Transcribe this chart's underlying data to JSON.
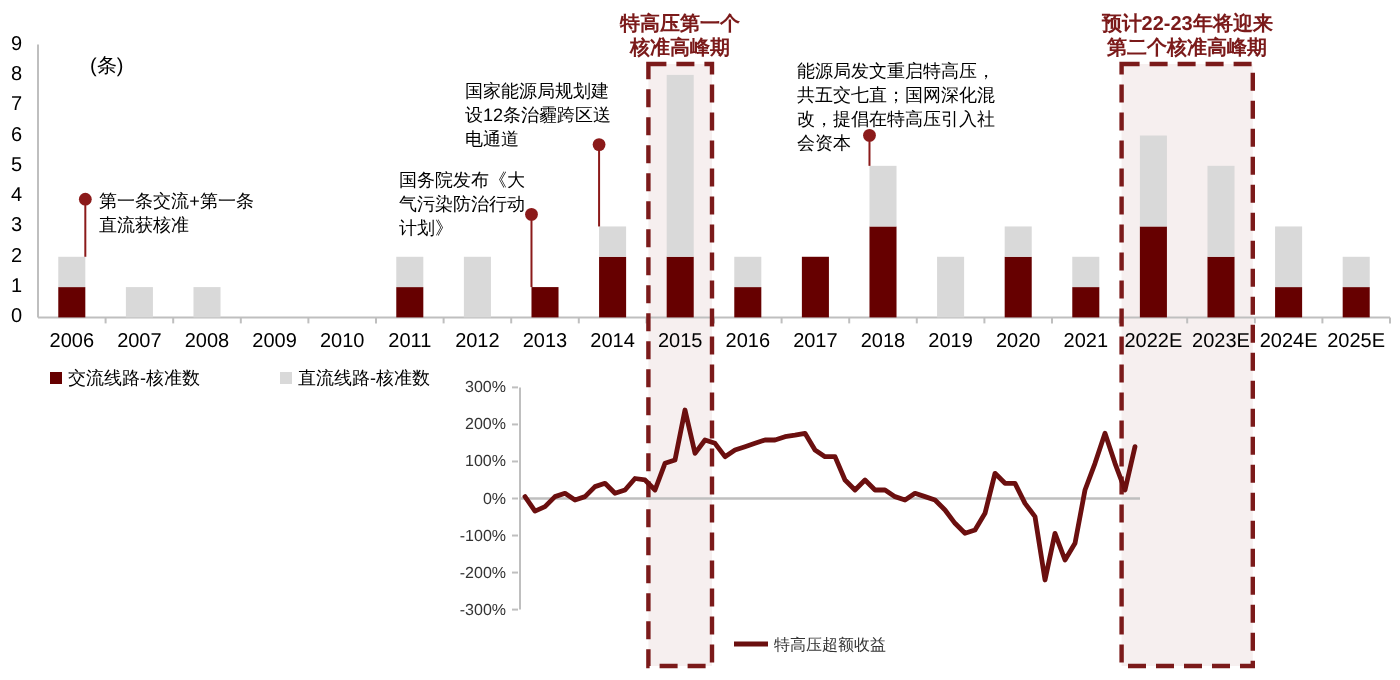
{
  "chart_data": [
    {
      "type": "bar",
      "stacked": true,
      "ylabel": "(条)",
      "categories": [
        "2006",
        "2007",
        "2008",
        "2009",
        "2010",
        "2011",
        "2012",
        "2013",
        "2014",
        "2015",
        "2016",
        "2017",
        "2018",
        "2019",
        "2020",
        "2021",
        "2022E",
        "2023E",
        "2024E",
        "2025E"
      ],
      "series": [
        {
          "name": "交流线路-核准数",
          "color": "#660000",
          "values": [
            1,
            0,
            0,
            0,
            0,
            1,
            0,
            1,
            2,
            2,
            1,
            2,
            3,
            0,
            2,
            1,
            3,
            2,
            1,
            1
          ]
        },
        {
          "name": "直流线路-核准数",
          "color": "#d9d9d9",
          "values": [
            1,
            1,
            1,
            0,
            0,
            1,
            2,
            0,
            1,
            6,
            1,
            0,
            2,
            2,
            1,
            1,
            3,
            3,
            2,
            1
          ]
        }
      ],
      "ylim": [
        0,
        9
      ],
      "yticks": [
        0,
        1,
        2,
        3,
        4,
        5,
        6,
        7,
        8,
        9
      ],
      "legend": "bottom left",
      "bands": [
        {
          "axis": "x",
          "from": "2015",
          "to": "2015",
          "label": "特高压第一个核准高峰期",
          "color": "#7b1a1a"
        },
        {
          "axis": "x",
          "from": "2022E",
          "to": "2023E",
          "label": "预计22-23年将迎来第二个核准高峰期",
          "color": "#7b1a1a"
        }
      ],
      "annotations": [
        "第一条交流+第一条直流获核准",
        "国务院发布《大气污染防治行动计划》",
        "国家能源局规划建设12条治霾跨区送电通道",
        "能源局发文重启特高压，共五交七直；国网深化混改，提倡在特高压引入社会资本"
      ]
    },
    {
      "type": "line",
      "ylim": [
        -300,
        300
      ],
      "yticks": [
        {
          "value": 300,
          "label": "300%"
        },
        {
          "value": 200,
          "label": "200%"
        },
        {
          "value": 100,
          "label": "100%"
        },
        {
          "value": 0,
          "label": "0%"
        },
        {
          "value": -100,
          "label": "-100%"
        },
        {
          "value": -200,
          "label": "-200%"
        },
        {
          "value": -300,
          "label": "-300%"
        }
      ],
      "tick_labels": "y",
      "legend": "bottom",
      "ref_lines": [
        {
          "axis": "y",
          "value": 0,
          "color": "#bfbfbf"
        }
      ],
      "categories": [
        null,
        null,
        null,
        null,
        null,
        null,
        null,
        null,
        null,
        null,
        null,
        null,
        null,
        null,
        null,
        null,
        null,
        null,
        null,
        null,
        null,
        null,
        null,
        null,
        null,
        null,
        null,
        null,
        null,
        null,
        null,
        null,
        null,
        null,
        null,
        null,
        null,
        null,
        null,
        null,
        null,
        null,
        null,
        null,
        null,
        null,
        null,
        null,
        null,
        null,
        null,
        null,
        null,
        null,
        null,
        null,
        null,
        null,
        null,
        null,
        null,
        null
      ],
      "series": [
        {
          "name": "特高压超额收益",
          "color": "#6b0f0f",
          "values": [
            5,
            -34,
            -22,
            5,
            14,
            -4,
            5,
            32,
            41,
            14,
            23,
            54,
            50,
            23,
            95,
            104,
            239,
            122,
            158,
            149,
            113,
            131,
            140,
            149,
            158,
            158,
            167,
            171,
            176,
            131,
            113,
            113,
            50,
            23,
            50,
            23,
            23,
            5,
            -4,
            14,
            5,
            -4,
            -31,
            -67,
            -94,
            -85,
            -40,
            68,
            41,
            41,
            -13,
            -49,
            -220,
            -94,
            -166,
            -121,
            23,
            95,
            176,
            95,
            23,
            140
          ]
        }
      ]
    }
  ]
}
